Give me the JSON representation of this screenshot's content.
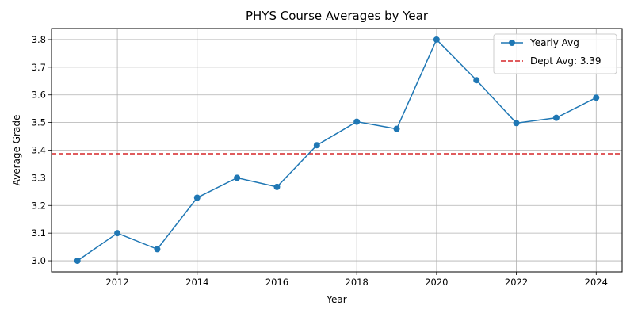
{
  "chart_data": {
    "type": "line",
    "title": "PHYS Course Averages by Year",
    "xlabel": "Year",
    "ylabel": "Average Grade",
    "xlim": [
      2010.35,
      2024.65
    ],
    "ylim": [
      2.96,
      3.84
    ],
    "xticks": [
      2012,
      2014,
      2016,
      2018,
      2020,
      2022,
      2024
    ],
    "yticks": [
      3.0,
      3.1,
      3.2,
      3.3,
      3.4,
      3.5,
      3.6,
      3.7,
      3.8
    ],
    "ytick_labels": [
      "3.0",
      "3.1",
      "3.2",
      "3.3",
      "3.4",
      "3.5",
      "3.6",
      "3.7",
      "3.8"
    ],
    "grid": true,
    "legend_position": "top-right",
    "series": [
      {
        "name": "Yearly Avg",
        "color": "#1f77b4",
        "marker": "circle",
        "x": [
          2011,
          2012,
          2013,
          2014,
          2015,
          2016,
          2017,
          2018,
          2019,
          2020,
          2021,
          2022,
          2023,
          2024
        ],
        "values": [
          3.0,
          3.1,
          3.042,
          3.228,
          3.3,
          3.267,
          3.418,
          3.503,
          3.477,
          3.8,
          3.653,
          3.498,
          3.517,
          3.59
        ]
      }
    ],
    "reference_line": {
      "name": "Dept Avg: 3.39",
      "value": 3.387,
      "color": "#d62728",
      "style": "dashed"
    }
  }
}
